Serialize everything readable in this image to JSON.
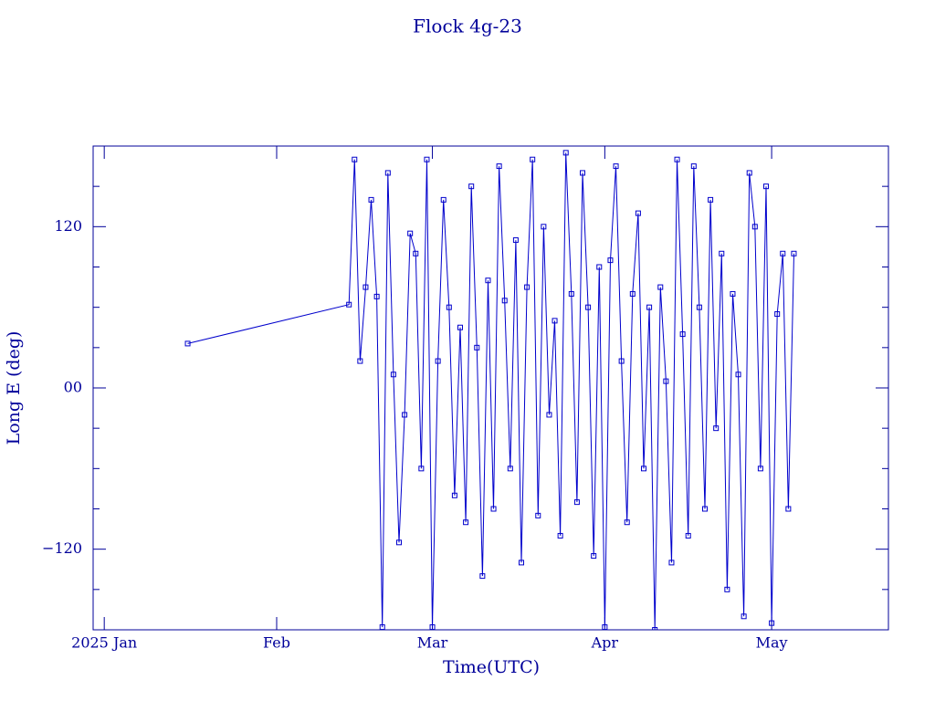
{
  "chart_data": {
    "type": "line",
    "title": "Flock 4g-23",
    "x_label": "Time(UTC)",
    "y_label": "Long E (deg)",
    "x": [
      "2025-01-16",
      "2025-02-14",
      "2025-02-15",
      "2025-02-16",
      "2025-02-17",
      "2025-02-18",
      "2025-02-19",
      "2025-02-20",
      "2025-02-21",
      "2025-02-22",
      "2025-02-23",
      "2025-02-24",
      "2025-02-25",
      "2025-02-26",
      "2025-02-27",
      "2025-02-28",
      "2025-03-01",
      "2025-03-02",
      "2025-03-03",
      "2025-03-04",
      "2025-03-05",
      "2025-03-06",
      "2025-03-07",
      "2025-03-08",
      "2025-03-09",
      "2025-03-10",
      "2025-03-11",
      "2025-03-12",
      "2025-03-13",
      "2025-03-14",
      "2025-03-15",
      "2025-03-16",
      "2025-03-17",
      "2025-03-18",
      "2025-03-19",
      "2025-03-20",
      "2025-03-21",
      "2025-03-22",
      "2025-03-23",
      "2025-03-24",
      "2025-03-25",
      "2025-03-26",
      "2025-03-27",
      "2025-03-28",
      "2025-03-29",
      "2025-03-30",
      "2025-03-31",
      "2025-04-01",
      "2025-04-02",
      "2025-04-03",
      "2025-04-04",
      "2025-04-05",
      "2025-04-06",
      "2025-04-07",
      "2025-04-08",
      "2025-04-09",
      "2025-04-10",
      "2025-04-11",
      "2025-04-12",
      "2025-04-13",
      "2025-04-14",
      "2025-04-15",
      "2025-04-16",
      "2025-04-17",
      "2025-04-18",
      "2025-04-19",
      "2025-04-20",
      "2025-04-21",
      "2025-04-22",
      "2025-04-23",
      "2025-04-24",
      "2025-04-25",
      "2025-04-26",
      "2025-04-27",
      "2025-04-28",
      "2025-04-29",
      "2025-04-30",
      "2025-05-01",
      "2025-05-02",
      "2025-05-03",
      "2025-05-04",
      "2025-05-05"
    ],
    "series": [
      {
        "name": "Long E",
        "color": "#0000cc",
        "values": [
          33,
          62,
          170,
          20,
          75,
          140,
          68,
          -178,
          160,
          10,
          -115,
          -20,
          115,
          100,
          -60,
          170,
          -178,
          20,
          140,
          60,
          -80,
          45,
          -100,
          150,
          30,
          -140,
          80,
          -90,
          165,
          65,
          -60,
          110,
          -130,
          75,
          170,
          -95,
          120,
          -20,
          50,
          -110,
          175,
          70,
          -85,
          160,
          60,
          -125,
          90,
          -178,
          95,
          165,
          20,
          -100,
          70,
          130,
          -60,
          60,
          -180,
          75,
          5,
          -130,
          170,
          40,
          -110,
          165,
          60,
          -90,
          140,
          -30,
          100,
          -150,
          70,
          10,
          -170,
          160,
          120,
          -60,
          150,
          -175,
          55,
          100,
          -90,
          100
        ]
      }
    ],
    "xlim": [
      "2024-12-30",
      "2025-05-22"
    ],
    "xticks": [
      {
        "value": "2025-01-01",
        "label": "2025 Jan"
      },
      {
        "value": "2025-02-01",
        "label": "Feb"
      },
      {
        "value": "2025-03-01",
        "label": "Mar"
      },
      {
        "value": "2025-04-01",
        "label": "Apr"
      },
      {
        "value": "2025-05-01",
        "label": "May"
      }
    ],
    "ylim": [
      -180,
      180
    ],
    "yticks": [
      {
        "value": -120,
        "label": "−120"
      },
      {
        "value": 0,
        "label": "00"
      },
      120
    ],
    "yminorticks": [
      -150,
      -90,
      -60,
      -30,
      30,
      60,
      90,
      150
    ]
  }
}
